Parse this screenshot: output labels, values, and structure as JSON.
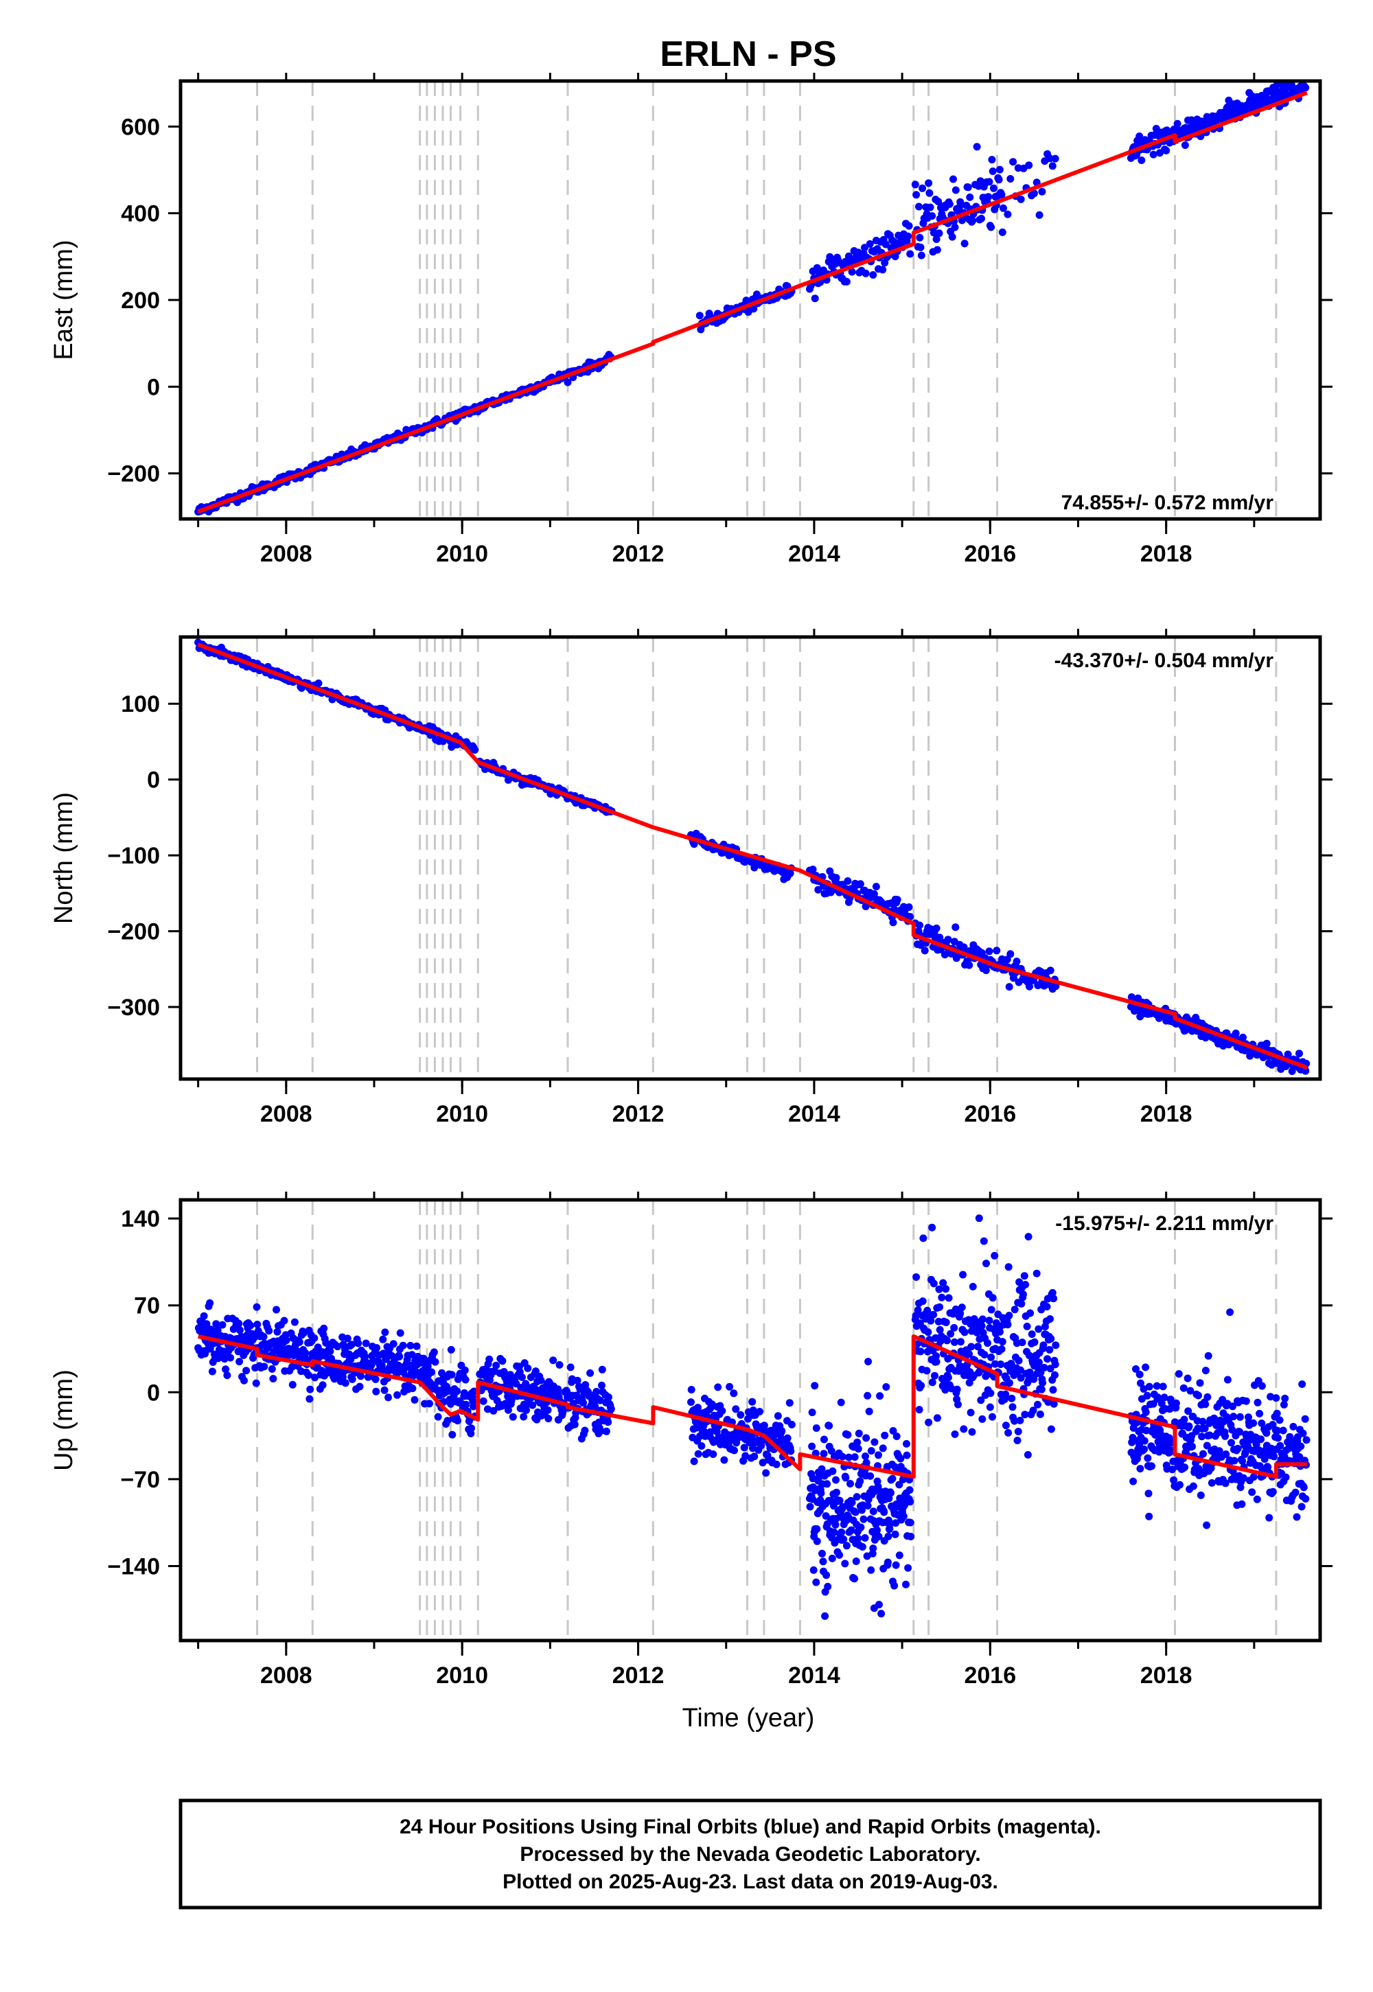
{
  "title": "ERLN - PS",
  "x_axis_label": "Time (year)",
  "footer": {
    "line1": "24 Hour Positions Using Final Orbits (blue) and Rapid Orbits (magenta).",
    "line2": "Processed by the Nevada Geodetic Laboratory.",
    "line3": "Plotted on 2025-Aug-23. Last data on 2019-Aug-03."
  },
  "colors": {
    "final_orbits": "#0000ff",
    "model": "#ff0000",
    "event_lines": "#c8c8c8",
    "axes": "#000000"
  },
  "chart_data": [
    {
      "type": "scatter",
      "panel": "east",
      "ylabel": "East (mm)",
      "rate_text": "74.855+/- 0.572 mm/yr",
      "rate_position": "bottom-right",
      "xlim": [
        2006.8,
        2019.75
      ],
      "ylim": [
        -305,
        705
      ],
      "yticks": [
        -200,
        0,
        200,
        400,
        600
      ],
      "ytick_labels": [
        "−200",
        "0",
        "200",
        "400",
        "600"
      ],
      "xticks": [
        2008,
        2010,
        2012,
        2014,
        2016,
        2018
      ],
      "xtick_labels": [
        "2008",
        "2010",
        "2012",
        "2014",
        "2016",
        "2018"
      ],
      "minor_xticks": [
        2007,
        2008,
        2009,
        2010,
        2011,
        2012,
        2013,
        2014,
        2015,
        2016,
        2017,
        2018,
        2019
      ],
      "event_lines": [
        2007.67,
        2008.3,
        2009.52,
        2009.6,
        2009.69,
        2009.78,
        2009.87,
        2009.98,
        2010.18,
        2011.2,
        2012.17,
        2013.24,
        2013.43,
        2013.84,
        2015.13,
        2015.3,
        2016.08,
        2018.1,
        2019.25
      ],
      "series": [
        {
          "name": "Final Orbits",
          "color": "#0000ff",
          "segments": [
            {
              "x_start": 2007.0,
              "x_end": 2011.7,
              "step": 0.012,
              "slope": 74.855,
              "intercept": -287,
              "x0": 2007.0,
              "scatter": 5,
              "spike": 0
            },
            {
              "x_start": 2012.7,
              "x_end": 2013.75,
              "step": 0.012,
              "slope": 74.855,
              "intercept": 145,
              "x0": 2012.7,
              "scatter": 7,
              "spike": 0
            },
            {
              "x_start": 2013.95,
              "x_end": 2015.1,
              "step": 0.012,
              "slope": 74.855,
              "intercept": 255,
              "x0": 2014.0,
              "scatter": 18,
              "spike": 15
            },
            {
              "x_start": 2015.15,
              "x_end": 2016.15,
              "step": 0.01,
              "slope": 74.855,
              "intercept": 370,
              "x0": 2015.15,
              "scatter": 40,
              "spike": 40
            },
            {
              "x_start": 2016.2,
              "x_end": 2016.75,
              "step": 0.03,
              "slope": 74.855,
              "intercept": 450,
              "x0": 2016.2,
              "scatter": 55,
              "spike": 50
            },
            {
              "x_start": 2017.6,
              "x_end": 2019.6,
              "step": 0.008,
              "slope": 74.855,
              "intercept": 545,
              "x0": 2017.6,
              "scatter": 12,
              "spike": 8
            }
          ]
        },
        {
          "name": "Model",
          "color": "#ff0000",
          "type": "line",
          "x": [
            2007.0,
            2009.98,
            2010.18,
            2012.17,
            2012.17,
            2013.84,
            2015.13,
            2015.13,
            2016.08,
            2018.1,
            2018.1,
            2019.6
          ],
          "y": [
            -288,
            -66,
            -50,
            99,
            103,
            233,
            329,
            355,
            426,
            580,
            565,
            678
          ]
        }
      ]
    },
    {
      "type": "scatter",
      "panel": "north",
      "ylabel": "North (mm)",
      "rate_text": "-43.370+/- 0.504 mm/yr",
      "rate_position": "top-right",
      "xlim": [
        2006.8,
        2019.75
      ],
      "ylim": [
        -395,
        188
      ],
      "yticks": [
        -300,
        -200,
        -100,
        0,
        100
      ],
      "ytick_labels": [
        "−300",
        "−200",
        "−100",
        "0",
        "100"
      ],
      "xticks": [
        2008,
        2010,
        2012,
        2014,
        2016,
        2018
      ],
      "xtick_labels": [
        "2008",
        "2010",
        "2012",
        "2014",
        "2016",
        "2018"
      ],
      "minor_xticks": [
        2007,
        2008,
        2009,
        2010,
        2011,
        2012,
        2013,
        2014,
        2015,
        2016,
        2017,
        2018,
        2019
      ],
      "event_lines": [
        2007.67,
        2008.3,
        2009.52,
        2009.6,
        2009.69,
        2009.78,
        2009.87,
        2009.98,
        2010.18,
        2011.2,
        2012.17,
        2013.24,
        2013.43,
        2013.84,
        2015.13,
        2015.3,
        2016.08,
        2018.1,
        2019.25
      ],
      "series": [
        {
          "name": "Final Orbits",
          "color": "#0000ff",
          "segments": [
            {
              "x_start": 2007.0,
              "x_end": 2010.15,
              "step": 0.012,
              "slope": -43.37,
              "intercept": 178,
              "x0": 2007.0,
              "scatter": 3,
              "spike": 0
            },
            {
              "x_start": 2010.2,
              "x_end": 2011.7,
              "step": 0.012,
              "slope": -43.37,
              "intercept": 22,
              "x0": 2010.2,
              "scatter": 3,
              "spike": 0
            },
            {
              "x_start": 2012.6,
              "x_end": 2013.75,
              "step": 0.012,
              "slope": -43.37,
              "intercept": -76,
              "x0": 2012.6,
              "scatter": 4,
              "spike": 0
            },
            {
              "x_start": 2013.95,
              "x_end": 2015.1,
              "step": 0.012,
              "slope": -43.37,
              "intercept": -128,
              "x0": 2013.95,
              "scatter": 8,
              "spike": 5
            },
            {
              "x_start": 2015.15,
              "x_end": 2016.75,
              "step": 0.012,
              "slope": -43.37,
              "intercept": -203,
              "x0": 2015.15,
              "scatter": 8,
              "spike": 6
            },
            {
              "x_start": 2017.6,
              "x_end": 2019.6,
              "step": 0.008,
              "slope": -43.37,
              "intercept": -295,
              "x0": 2017.6,
              "scatter": 5,
              "spike": 3
            }
          ]
        },
        {
          "name": "Model",
          "color": "#ff0000",
          "type": "line",
          "x": [
            2007.0,
            2009.98,
            2010.18,
            2012.17,
            2013.84,
            2015.13,
            2015.13,
            2016.08,
            2018.1,
            2018.1,
            2019.6
          ],
          "y": [
            178,
            49,
            23,
            -63,
            -120,
            -190,
            -205,
            -246,
            -309,
            -315,
            -380
          ]
        }
      ]
    },
    {
      "type": "scatter",
      "panel": "up",
      "ylabel": "Up (mm)",
      "rate_text": "-15.975+/- 2.211 mm/yr",
      "rate_position": "top-right",
      "xlim": [
        2006.8,
        2019.75
      ],
      "ylim": [
        -200,
        155
      ],
      "yticks": [
        -140,
        -70,
        0,
        70,
        140
      ],
      "ytick_labels": [
        "−140",
        "−70",
        "0",
        "70",
        "140"
      ],
      "xticks": [
        2008,
        2010,
        2012,
        2014,
        2016,
        2018
      ],
      "xtick_labels": [
        "2008",
        "2010",
        "2012",
        "2014",
        "2016",
        "2018"
      ],
      "minor_xticks": [
        2007,
        2008,
        2009,
        2010,
        2011,
        2012,
        2013,
        2014,
        2015,
        2016,
        2017,
        2018,
        2019
      ],
      "event_lines": [
        2007.67,
        2008.3,
        2009.52,
        2009.6,
        2009.69,
        2009.78,
        2009.87,
        2009.98,
        2010.18,
        2011.2,
        2012.17,
        2013.24,
        2013.43,
        2013.84,
        2015.13,
        2015.3,
        2016.08,
        2018.1,
        2019.25
      ],
      "series": [
        {
          "name": "Final Orbits",
          "color": "#0000ff",
          "segments": [
            {
              "x_start": 2007.0,
              "x_end": 2009.7,
              "step": 0.006,
              "slope": -12.5,
              "intercept": 45,
              "x0": 2007.0,
              "scatter": 11,
              "spike": 10
            },
            {
              "x_start": 2009.72,
              "x_end": 2010.15,
              "step": 0.006,
              "slope": -10,
              "intercept": -5,
              "x0": 2009.72,
              "scatter": 13,
              "spike": 8
            },
            {
              "x_start": 2010.2,
              "x_end": 2011.7,
              "step": 0.006,
              "slope": -15,
              "intercept": 8,
              "x0": 2010.2,
              "scatter": 11,
              "spike": 8
            },
            {
              "x_start": 2012.6,
              "x_end": 2013.75,
              "step": 0.006,
              "slope": -14,
              "intercept": -25,
              "x0": 2012.6,
              "scatter": 13,
              "spike": 15
            },
            {
              "x_start": 2013.95,
              "x_end": 2015.1,
              "step": 0.004,
              "slope": 0,
              "intercept": -90,
              "x0": 2013.95,
              "scatter": 30,
              "spike": 55
            },
            {
              "x_start": 2015.15,
              "x_end": 2016.75,
              "step": 0.005,
              "slope": -10,
              "intercept": 40,
              "x0": 2015.15,
              "scatter": 30,
              "spike": 50
            },
            {
              "x_start": 2017.6,
              "x_end": 2019.6,
              "step": 0.005,
              "slope": -12,
              "intercept": -30,
              "x0": 2017.6,
              "scatter": 22,
              "spike": 30
            }
          ]
        },
        {
          "name": "Model",
          "color": "#ff0000",
          "type": "line",
          "x": [
            2007.0,
            2007.67,
            2007.67,
            2008.3,
            2008.3,
            2009.52,
            2009.6,
            2009.69,
            2009.78,
            2009.87,
            2009.98,
            2010.18,
            2010.18,
            2011.2,
            2011.2,
            2012.17,
            2012.17,
            2013.24,
            2013.43,
            2013.84,
            2013.84,
            2015.13,
            2015.13,
            2016.08,
            2016.08,
            2018.1,
            2018.1,
            2019.25,
            2019.25,
            2019.6
          ],
          "y": [
            45,
            35,
            30,
            22,
            25,
            8,
            2,
            -5,
            -12,
            -18,
            -15,
            -22,
            8,
            -10,
            -12,
            -25,
            -12,
            -30,
            -35,
            -62,
            -50,
            -68,
            45,
            15,
            5,
            -28,
            -50,
            -68,
            -58,
            -58
          ]
        }
      ]
    }
  ]
}
